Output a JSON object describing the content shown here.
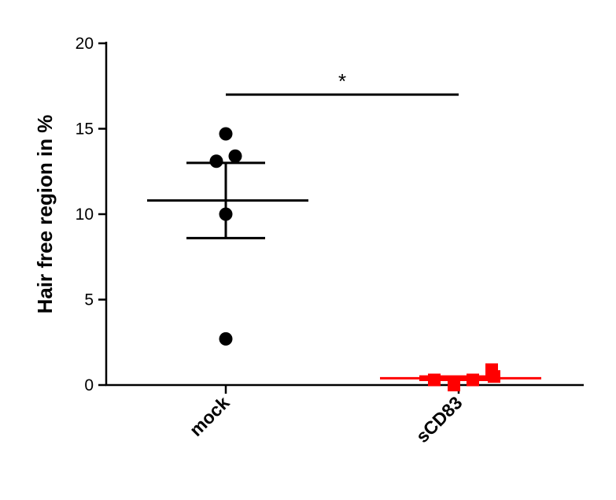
{
  "chart_data": {
    "type": "dotplot",
    "y_label": "Hair free region in %",
    "ylim": [
      0,
      20
    ],
    "yticks": [
      0,
      5,
      10,
      15,
      20
    ],
    "groups": [
      {
        "name": "mock",
        "color": "#000000",
        "marker": "circle",
        "values": [
          14.7,
          13.1,
          13.4,
          10.0,
          2.7
        ],
        "mean": 10.8,
        "sem": 2.2
      },
      {
        "name": "sCD83",
        "color": "#ff0000",
        "marker": "square",
        "values": [
          0.3,
          0.0,
          0.3,
          0.9,
          0.5
        ],
        "mean": 0.4,
        "sem": 0.1
      }
    ],
    "annotation": {
      "text": "*",
      "y": 17
    }
  }
}
